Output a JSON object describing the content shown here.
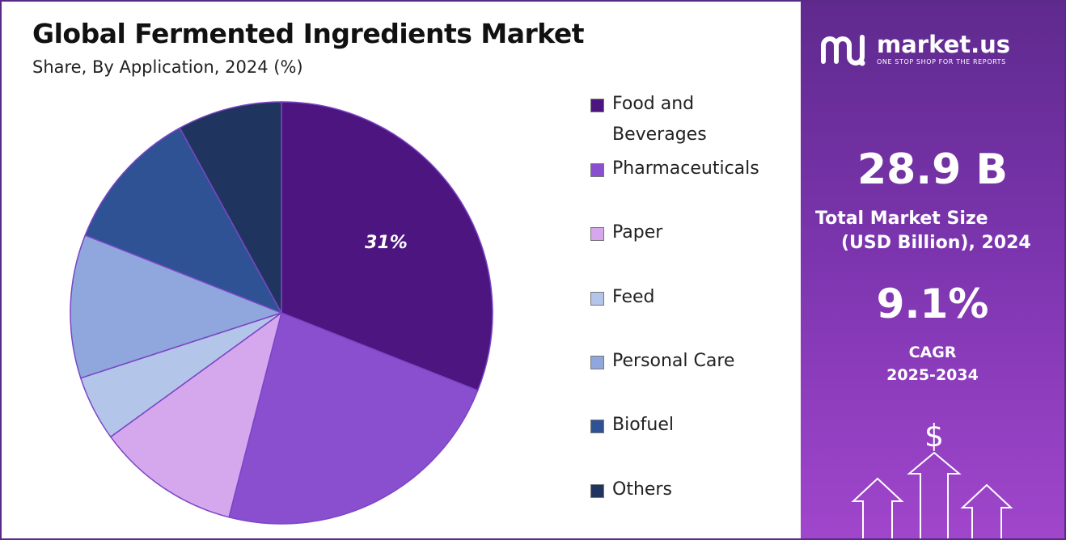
{
  "header": {
    "title": "Global Fermented Ingredients Market",
    "subtitle": "Share, By Application, 2024 (%)"
  },
  "chart_data": {
    "type": "pie",
    "categories": [
      "Food and Beverages",
      "Pharmaceuticals",
      "Paper",
      "Feed",
      "Personal Care",
      "Biofuel",
      "Others"
    ],
    "values": [
      31,
      23,
      11,
      5,
      11,
      11,
      8
    ],
    "colors": [
      "#4c1580",
      "#8a4fcf",
      "#d5a8ee",
      "#b3c5e9",
      "#8fa7dc",
      "#2e5294",
      "#1f355f"
    ],
    "data_labels": [
      "31%",
      "",
      "",
      "",
      "",
      "",
      ""
    ],
    "legend_position": "right",
    "start_angle_deg": 0,
    "direction": "clockwise"
  },
  "legend": {
    "items": [
      "Food and Beverages",
      "Pharmaceuticals",
      "Paper",
      "Feed",
      "Personal Care",
      "Biofuel",
      "Others"
    ]
  },
  "side_panel": {
    "brand": "market.us",
    "tagline": "ONE STOP SHOP FOR THE REPORTS",
    "market_size_value": "28.9 B",
    "market_size_label_line1": "Total Market Size",
    "market_size_label_line2": "(USD Billion), 2024",
    "cagr_value": "9.1%",
    "cagr_label": "CAGR",
    "cagr_period": "2025-2034",
    "currency_symbol": "$",
    "colors": {
      "panel_top": "#5f2a8e",
      "panel_bottom": "#a046cc"
    }
  }
}
